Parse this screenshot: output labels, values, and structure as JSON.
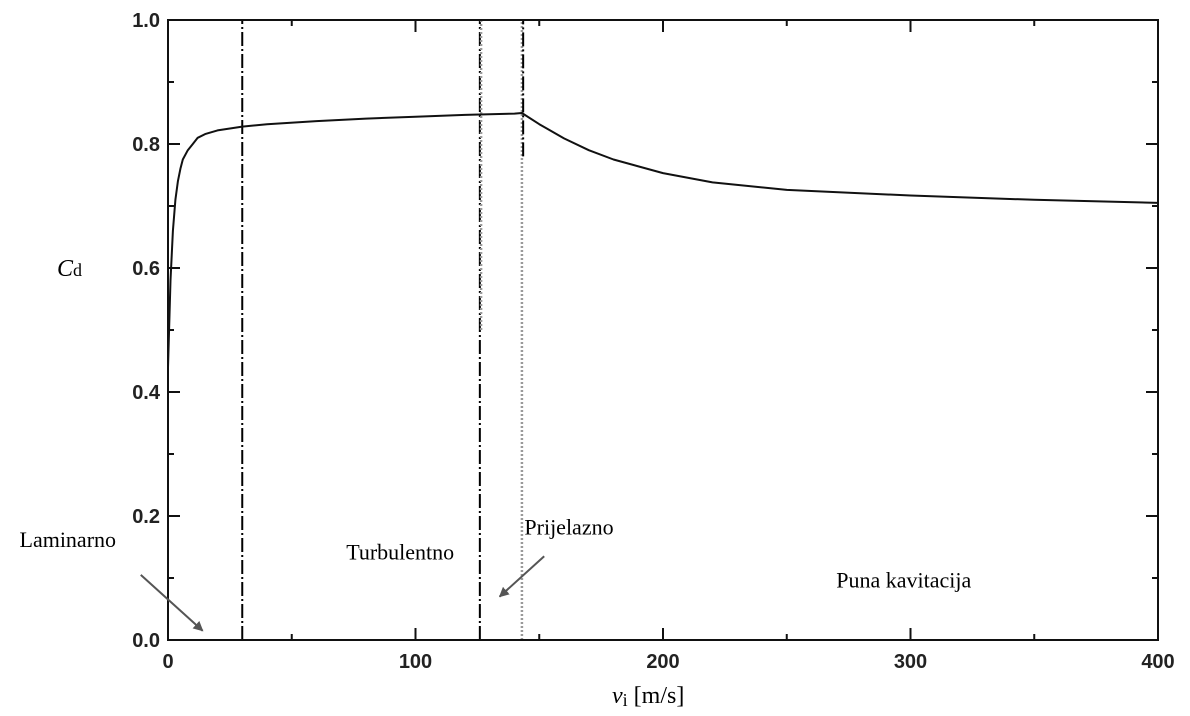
{
  "chart_data": {
    "type": "line",
    "xlabel": {
      "main": "v",
      "sub": "i",
      "unit": "[m/s]"
    },
    "ylabel": {
      "main": "C",
      "sub": "d"
    },
    "xlim": [
      0,
      400
    ],
    "ylim": [
      0.0,
      1.0
    ],
    "x_ticks": [
      "0",
      "100",
      "200",
      "300",
      "400"
    ],
    "y_ticks": [
      "0.0",
      "0.2",
      "0.4",
      "0.6",
      "0.8",
      "1.0"
    ],
    "grid": false,
    "series": [
      {
        "x": [
          0,
          1,
          2,
          3,
          4,
          5,
          6,
          8,
          10,
          12,
          15,
          20,
          30,
          40,
          60,
          80,
          100,
          120,
          140,
          143,
          150,
          160,
          170,
          180,
          200,
          220,
          250,
          300,
          350,
          400
        ],
        "y": [
          0.44,
          0.58,
          0.66,
          0.71,
          0.74,
          0.76,
          0.775,
          0.79,
          0.8,
          0.81,
          0.816,
          0.822,
          0.828,
          0.832,
          0.837,
          0.841,
          0.844,
          0.847,
          0.849,
          0.85,
          0.832,
          0.809,
          0.79,
          0.775,
          0.753,
          0.738,
          0.726,
          0.717,
          0.71,
          0.705
        ]
      }
    ],
    "vertical_lines": [
      {
        "x": 30,
        "style": "dash-dot",
        "color": "#000000"
      },
      {
        "x": 126,
        "style": "dash-dot",
        "color": "#000000"
      },
      {
        "x": 126.5,
        "style": "dotted",
        "color": "#9a9a9a",
        "segment_from": 0.5,
        "segment_to": 1.0
      },
      {
        "x": 143,
        "style": "dotted",
        "color": "#9a9a9a"
      },
      {
        "x": 143.5,
        "style": "dash-dot",
        "color": "#000000",
        "segment_from": 0.78,
        "segment_to": 1.0
      }
    ],
    "annotations": [
      {
        "text": "Laminarno",
        "x": -60,
        "y": 0.15,
        "arrow_to": {
          "x": 14,
          "y": 0.015
        },
        "arrow_from": {
          "x": -11,
          "y": 0.105
        }
      },
      {
        "text": "Turbulentno",
        "x": 72,
        "y": 0.13
      },
      {
        "text": "Prijelazno",
        "x": 144,
        "y": 0.17,
        "arrow_to": {
          "x": 134,
          "y": 0.07
        },
        "arrow_from": {
          "x": 152,
          "y": 0.135
        }
      },
      {
        "text": "Puna kavitacija",
        "x": 270,
        "y": 0.085
      }
    ]
  }
}
